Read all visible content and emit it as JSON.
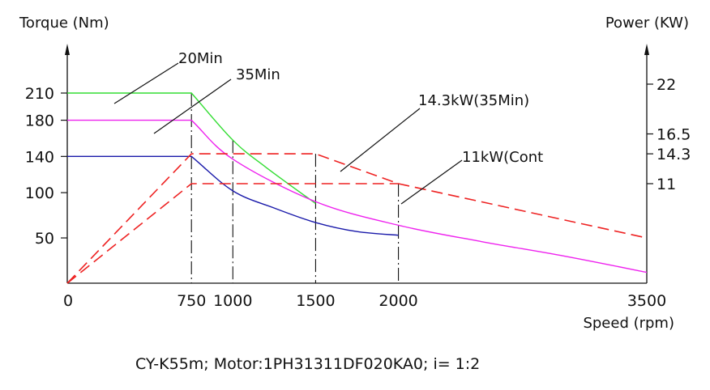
{
  "chart_data": {
    "type": "line",
    "left_axis_label": "Torque (Nm)",
    "right_axis_label": "Power (KW)",
    "x_axis_label": "Speed (rpm)",
    "xlim": [
      0,
      3500
    ],
    "ylim_left": [
      0,
      240
    ],
    "ylim_right": [
      0,
      25
    ],
    "x_ticks": [
      "0",
      "750",
      "1000",
      "1500",
      "2000",
      "3500"
    ],
    "x_tick_values": [
      0,
      750,
      1000,
      1500,
      2000,
      3500
    ],
    "y_left_ticks": [
      "50",
      "100",
      "140",
      "180",
      "210"
    ],
    "y_left_tick_values": [
      50,
      100,
      140,
      180,
      210
    ],
    "y_right_ticks": [
      "11",
      "14.3",
      "16.5",
      "22"
    ],
    "y_right_tick_values": [
      11,
      14.3,
      16.5,
      22
    ],
    "series": [
      {
        "name": "20Min",
        "axis": "left",
        "color": "#33dd33",
        "style": "solid",
        "x": [
          0,
          750,
          1000,
          1200,
          1500
        ],
        "y": [
          210,
          210,
          158,
          128,
          88
        ]
      },
      {
        "name": "35Min",
        "axis": "left",
        "color": "#ee22ee",
        "style": "solid",
        "x": [
          0,
          750,
          1000,
          1500,
          2000,
          2500,
          3000,
          3500
        ],
        "y": [
          180,
          180,
          137,
          90,
          64,
          46,
          30,
          12
        ]
      },
      {
        "axis": "left",
        "color": "#1a1aaa",
        "style": "solid",
        "x": [
          0,
          750,
          1000,
          1250,
          1500,
          1750,
          2000
        ],
        "y": [
          140,
          140,
          102,
          83,
          67,
          57,
          53
        ]
      },
      {
        "name": "14.3kW(35Min)",
        "axis": "right",
        "color": "#ee2222",
        "style": "dashed",
        "x": [
          0,
          750,
          1500,
          2000,
          3500
        ],
        "y": [
          0,
          14.3,
          14.3,
          11,
          5
        ]
      },
      {
        "name": "11kW(Cont",
        "axis": "right",
        "color": "#ee2222",
        "style": "dashed",
        "x": [
          0,
          750,
          2000
        ],
        "y": [
          0,
          11,
          11
        ]
      }
    ],
    "annotations": [
      {
        "text": "20Min"
      },
      {
        "text": "35Min"
      },
      {
        "text": "14.3kW(35Min)"
      },
      {
        "text": "11kW(Cont"
      }
    ],
    "vlines": [
      750,
      1000,
      1500,
      2000
    ],
    "grid": false
  },
  "caption": "CY-K55m;  Motor:1PH31311DF020KA0; i= 1:2"
}
